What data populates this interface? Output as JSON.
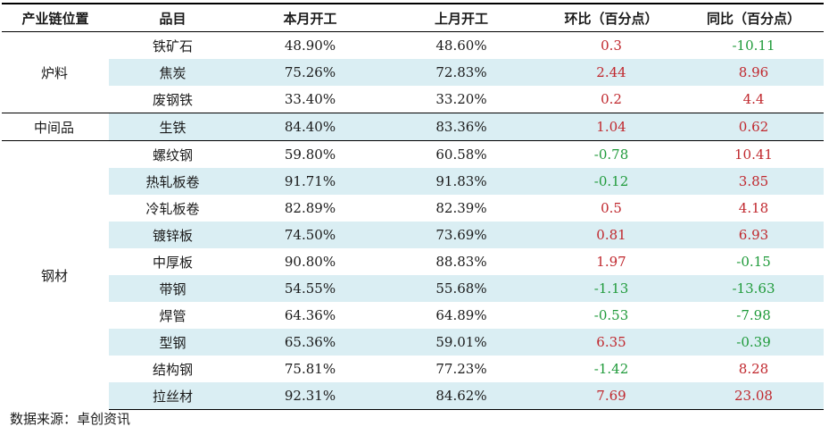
{
  "table": {
    "headers": [
      "产业链位置",
      "品目",
      "本月开工",
      "上月开工",
      "环比（百分点）",
      "同比（百分点）"
    ],
    "groups": [
      {
        "name": "炉料",
        "rows": [
          {
            "item": "铁矿石",
            "cur": "48.90%",
            "prev": "48.60%",
            "mom": "0.3",
            "yoy": "-10.11"
          },
          {
            "item": "焦炭",
            "cur": "75.26%",
            "prev": "72.83%",
            "mom": "2.44",
            "yoy": "8.96"
          },
          {
            "item": "废钢铁",
            "cur": "33.40%",
            "prev": "33.20%",
            "mom": "0.2",
            "yoy": "4.4"
          }
        ]
      },
      {
        "name": "中间品",
        "rows": [
          {
            "item": "生铁",
            "cur": "84.40%",
            "prev": "83.36%",
            "mom": "1.04",
            "yoy": "0.62"
          }
        ]
      },
      {
        "name": "钢材",
        "rows": [
          {
            "item": "螺纹钢",
            "cur": "59.80%",
            "prev": "60.58%",
            "mom": "-0.78",
            "yoy": "10.41"
          },
          {
            "item": "热轧板卷",
            "cur": "91.71%",
            "prev": "91.83%",
            "mom": "-0.12",
            "yoy": "3.85"
          },
          {
            "item": "冷轧板卷",
            "cur": "82.89%",
            "prev": "82.39%",
            "mom": "0.5",
            "yoy": "4.18"
          },
          {
            "item": "镀锌板",
            "cur": "74.50%",
            "prev": "73.69%",
            "mom": "0.81",
            "yoy": "6.93"
          },
          {
            "item": "中厚板",
            "cur": "90.80%",
            "prev": "88.83%",
            "mom": "1.97",
            "yoy": "-0.15"
          },
          {
            "item": "带钢",
            "cur": "54.55%",
            "prev": "55.68%",
            "mom": "-1.13",
            "yoy": "-13.63"
          },
          {
            "item": "焊管",
            "cur": "64.36%",
            "prev": "64.89%",
            "mom": "-0.53",
            "yoy": "-7.98"
          },
          {
            "item": "型钢",
            "cur": "65.36%",
            "prev": "59.01%",
            "mom": "6.35",
            "yoy": "-0.39"
          },
          {
            "item": "结构钢",
            "cur": "75.81%",
            "prev": "77.23%",
            "mom": "-1.42",
            "yoy": "8.28"
          },
          {
            "item": "拉丝材",
            "cur": "92.31%",
            "prev": "84.62%",
            "mom": "7.69",
            "yoy": "23.08"
          }
        ]
      }
    ]
  },
  "colors": {
    "positive": "#c0272d",
    "negative": "#1f9a3a",
    "shade": "#daeef3"
  },
  "source": "数据来源：卓创资讯"
}
